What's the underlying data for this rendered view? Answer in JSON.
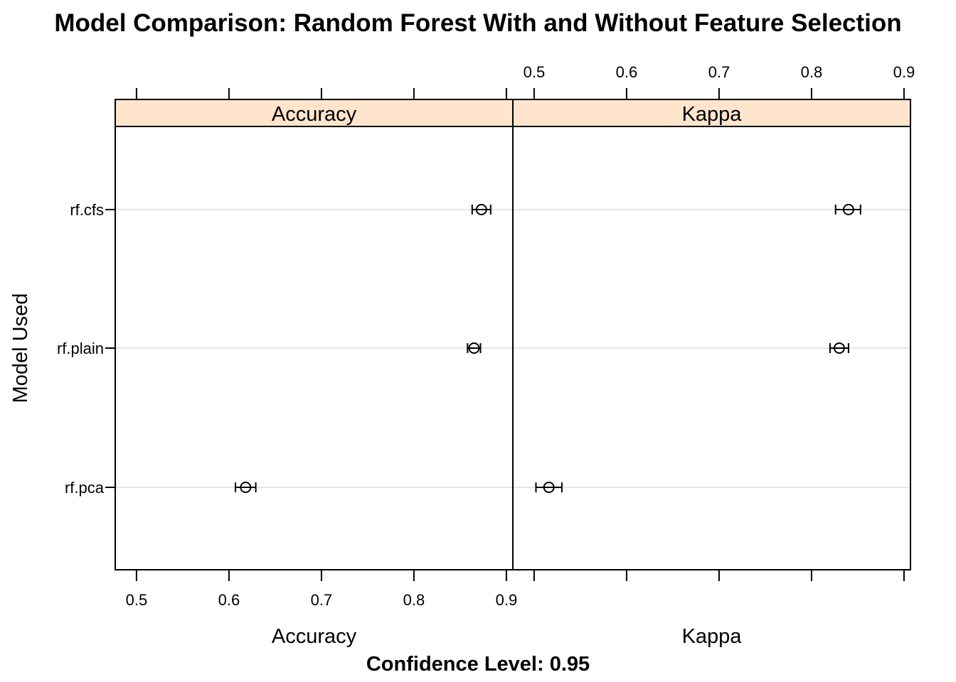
{
  "chart_data": {
    "type": "dotplot-with-confidence-intervals",
    "title": "Model Comparison: Random Forest With and Without Feature Selection",
    "ylabel": "Model Used",
    "footer": "Confidence Level: 0.95",
    "models": [
      "rf.cfs",
      "rf.plain",
      "rf.pca"
    ],
    "xlim": [
      0.477,
      0.907
    ],
    "ticks": [
      "0.5",
      "0.6",
      "0.7",
      "0.8",
      "0.9"
    ],
    "grid": "horizontal",
    "colors": {
      "strip": "#ffe5cc",
      "grid": "#e6e6e6",
      "ink": "#000000"
    },
    "panels": [
      {
        "name": "Accuracy",
        "xlabel": "Accuracy",
        "points": [
          {
            "model": "rf.cfs",
            "estimate": 0.873,
            "lower": 0.863,
            "upper": 0.883
          },
          {
            "model": "rf.plain",
            "estimate": 0.865,
            "lower": 0.858,
            "upper": 0.872
          },
          {
            "model": "rf.pca",
            "estimate": 0.618,
            "lower": 0.607,
            "upper": 0.629
          }
        ]
      },
      {
        "name": "Kappa",
        "xlabel": "Kappa",
        "points": [
          {
            "model": "rf.cfs",
            "estimate": 0.84,
            "lower": 0.826,
            "upper": 0.853
          },
          {
            "model": "rf.plain",
            "estimate": 0.83,
            "lower": 0.82,
            "upper": 0.84
          },
          {
            "model": "rf.pca",
            "estimate": 0.516,
            "lower": 0.502,
            "upper": 0.53
          }
        ]
      }
    ]
  }
}
